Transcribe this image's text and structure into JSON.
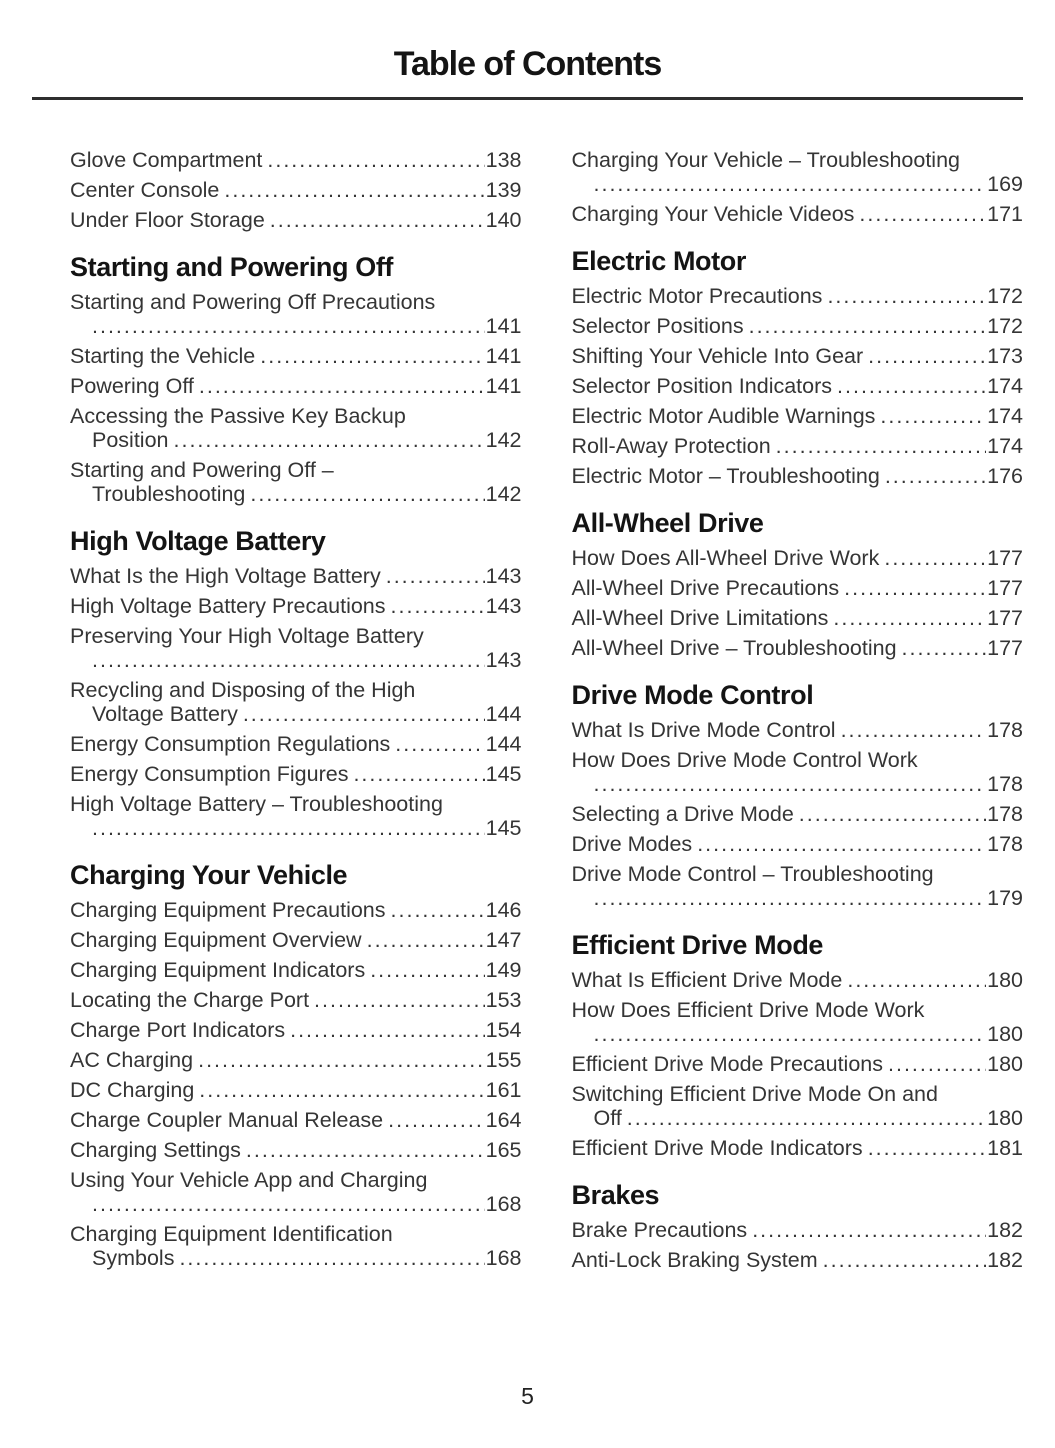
{
  "page": {
    "title": "Table of Contents",
    "page_number": "5"
  },
  "columns": {
    "left": {
      "sections": [
        {
          "title": null,
          "entries": [
            {
              "text": "Glove Compartment",
              "page": "138"
            },
            {
              "text": "Center Console",
              "page": "139"
            },
            {
              "text": "Under Floor Storage",
              "page": "140"
            }
          ]
        },
        {
          "title": "Starting and Powering Off",
          "entries": [
            {
              "text": "Starting and Powering Off Precautions",
              "cont": "",
              "page": "141"
            },
            {
              "text": "Starting the Vehicle",
              "page": "141"
            },
            {
              "text": "Powering Off",
              "page": "141"
            },
            {
              "text": "Accessing the Passive Key Backup",
              "cont": "Position",
              "page": "142"
            },
            {
              "text": "Starting and Powering Off –",
              "cont": "Troubleshooting",
              "page": "142"
            }
          ]
        },
        {
          "title": "High Voltage Battery",
          "entries": [
            {
              "text": "What Is the High Voltage Battery",
              "page": "143"
            },
            {
              "text": "High Voltage Battery Precautions",
              "page": "143"
            },
            {
              "text": "Preserving Your High Voltage Battery",
              "cont": "",
              "page": "143"
            },
            {
              "text": "Recycling and Disposing of the High",
              "cont": "Voltage Battery",
              "page": "144"
            },
            {
              "text": "Energy Consumption Regulations",
              "page": "144"
            },
            {
              "text": "Energy Consumption Figures",
              "page": "145"
            },
            {
              "text": "High Voltage Battery – Troubleshooting",
              "cont": "",
              "page": "145"
            }
          ]
        },
        {
          "title": "Charging Your Vehicle",
          "entries": [
            {
              "text": "Charging Equipment Precautions",
              "page": "146"
            },
            {
              "text": "Charging Equipment Overview",
              "page": "147"
            },
            {
              "text": "Charging Equipment Indicators",
              "page": "149"
            },
            {
              "text": "Locating the Charge Port",
              "page": "153"
            },
            {
              "text": "Charge Port Indicators",
              "page": "154"
            },
            {
              "text": "AC Charging",
              "page": "155"
            },
            {
              "text": "DC Charging",
              "page": "161"
            },
            {
              "text": "Charge Coupler Manual Release",
              "page": "164"
            },
            {
              "text": "Charging Settings",
              "page": "165"
            },
            {
              "text": "Using Your Vehicle App and Charging",
              "cont": "",
              "page": "168"
            },
            {
              "text": "Charging Equipment Identification",
              "cont": "Symbols",
              "page": "168"
            }
          ]
        }
      ]
    },
    "right": {
      "sections": [
        {
          "title": null,
          "entries": [
            {
              "text": "Charging Your Vehicle – Troubleshooting",
              "cont": "",
              "page": "169"
            },
            {
              "text": "Charging Your Vehicle Videos",
              "page": "171"
            }
          ]
        },
        {
          "title": "Electric Motor",
          "entries": [
            {
              "text": "Electric Motor Precautions",
              "page": "172"
            },
            {
              "text": "Selector Positions",
              "page": "172"
            },
            {
              "text": "Shifting Your Vehicle Into Gear",
              "page": "173"
            },
            {
              "text": "Selector Position Indicators",
              "page": "174"
            },
            {
              "text": "Electric Motor Audible Warnings",
              "page": "174"
            },
            {
              "text": "Roll-Away Protection",
              "page": "174"
            },
            {
              "text": "Electric Motor – Troubleshooting",
              "page": "176"
            }
          ]
        },
        {
          "title": "All-Wheel Drive",
          "entries": [
            {
              "text": "How Does All-Wheel Drive Work",
              "page": "177"
            },
            {
              "text": "All-Wheel Drive Precautions",
              "page": "177"
            },
            {
              "text": "All-Wheel Drive Limitations",
              "page": "177"
            },
            {
              "text": "All-Wheel Drive – Troubleshooting",
              "page": "177"
            }
          ]
        },
        {
          "title": "Drive Mode Control",
          "entries": [
            {
              "text": "What Is Drive Mode Control",
              "page": "178"
            },
            {
              "text": "How Does Drive Mode Control Work",
              "cont": "",
              "page": "178"
            },
            {
              "text": "Selecting a Drive Mode",
              "page": "178"
            },
            {
              "text": "Drive Modes",
              "page": "178"
            },
            {
              "text": "Drive Mode Control – Troubleshooting",
              "cont": "",
              "page": "179"
            }
          ]
        },
        {
          "title": "Efficient Drive Mode",
          "entries": [
            {
              "text": "What Is Efficient Drive Mode",
              "page": "180"
            },
            {
              "text": "How Does Efficient Drive Mode Work",
              "cont": "",
              "page": "180"
            },
            {
              "text": "Efficient Drive Mode Precautions",
              "page": "180"
            },
            {
              "text": "Switching Efficient Drive Mode On and",
              "cont": "Off",
              "page": "180"
            },
            {
              "text": "Efficient Drive Mode Indicators",
              "page": "181"
            }
          ]
        },
        {
          "title": "Brakes",
          "entries": [
            {
              "text": "Brake Precautions",
              "page": "182"
            },
            {
              "text": "Anti-Lock Braking System",
              "page": "182"
            }
          ]
        }
      ]
    }
  }
}
